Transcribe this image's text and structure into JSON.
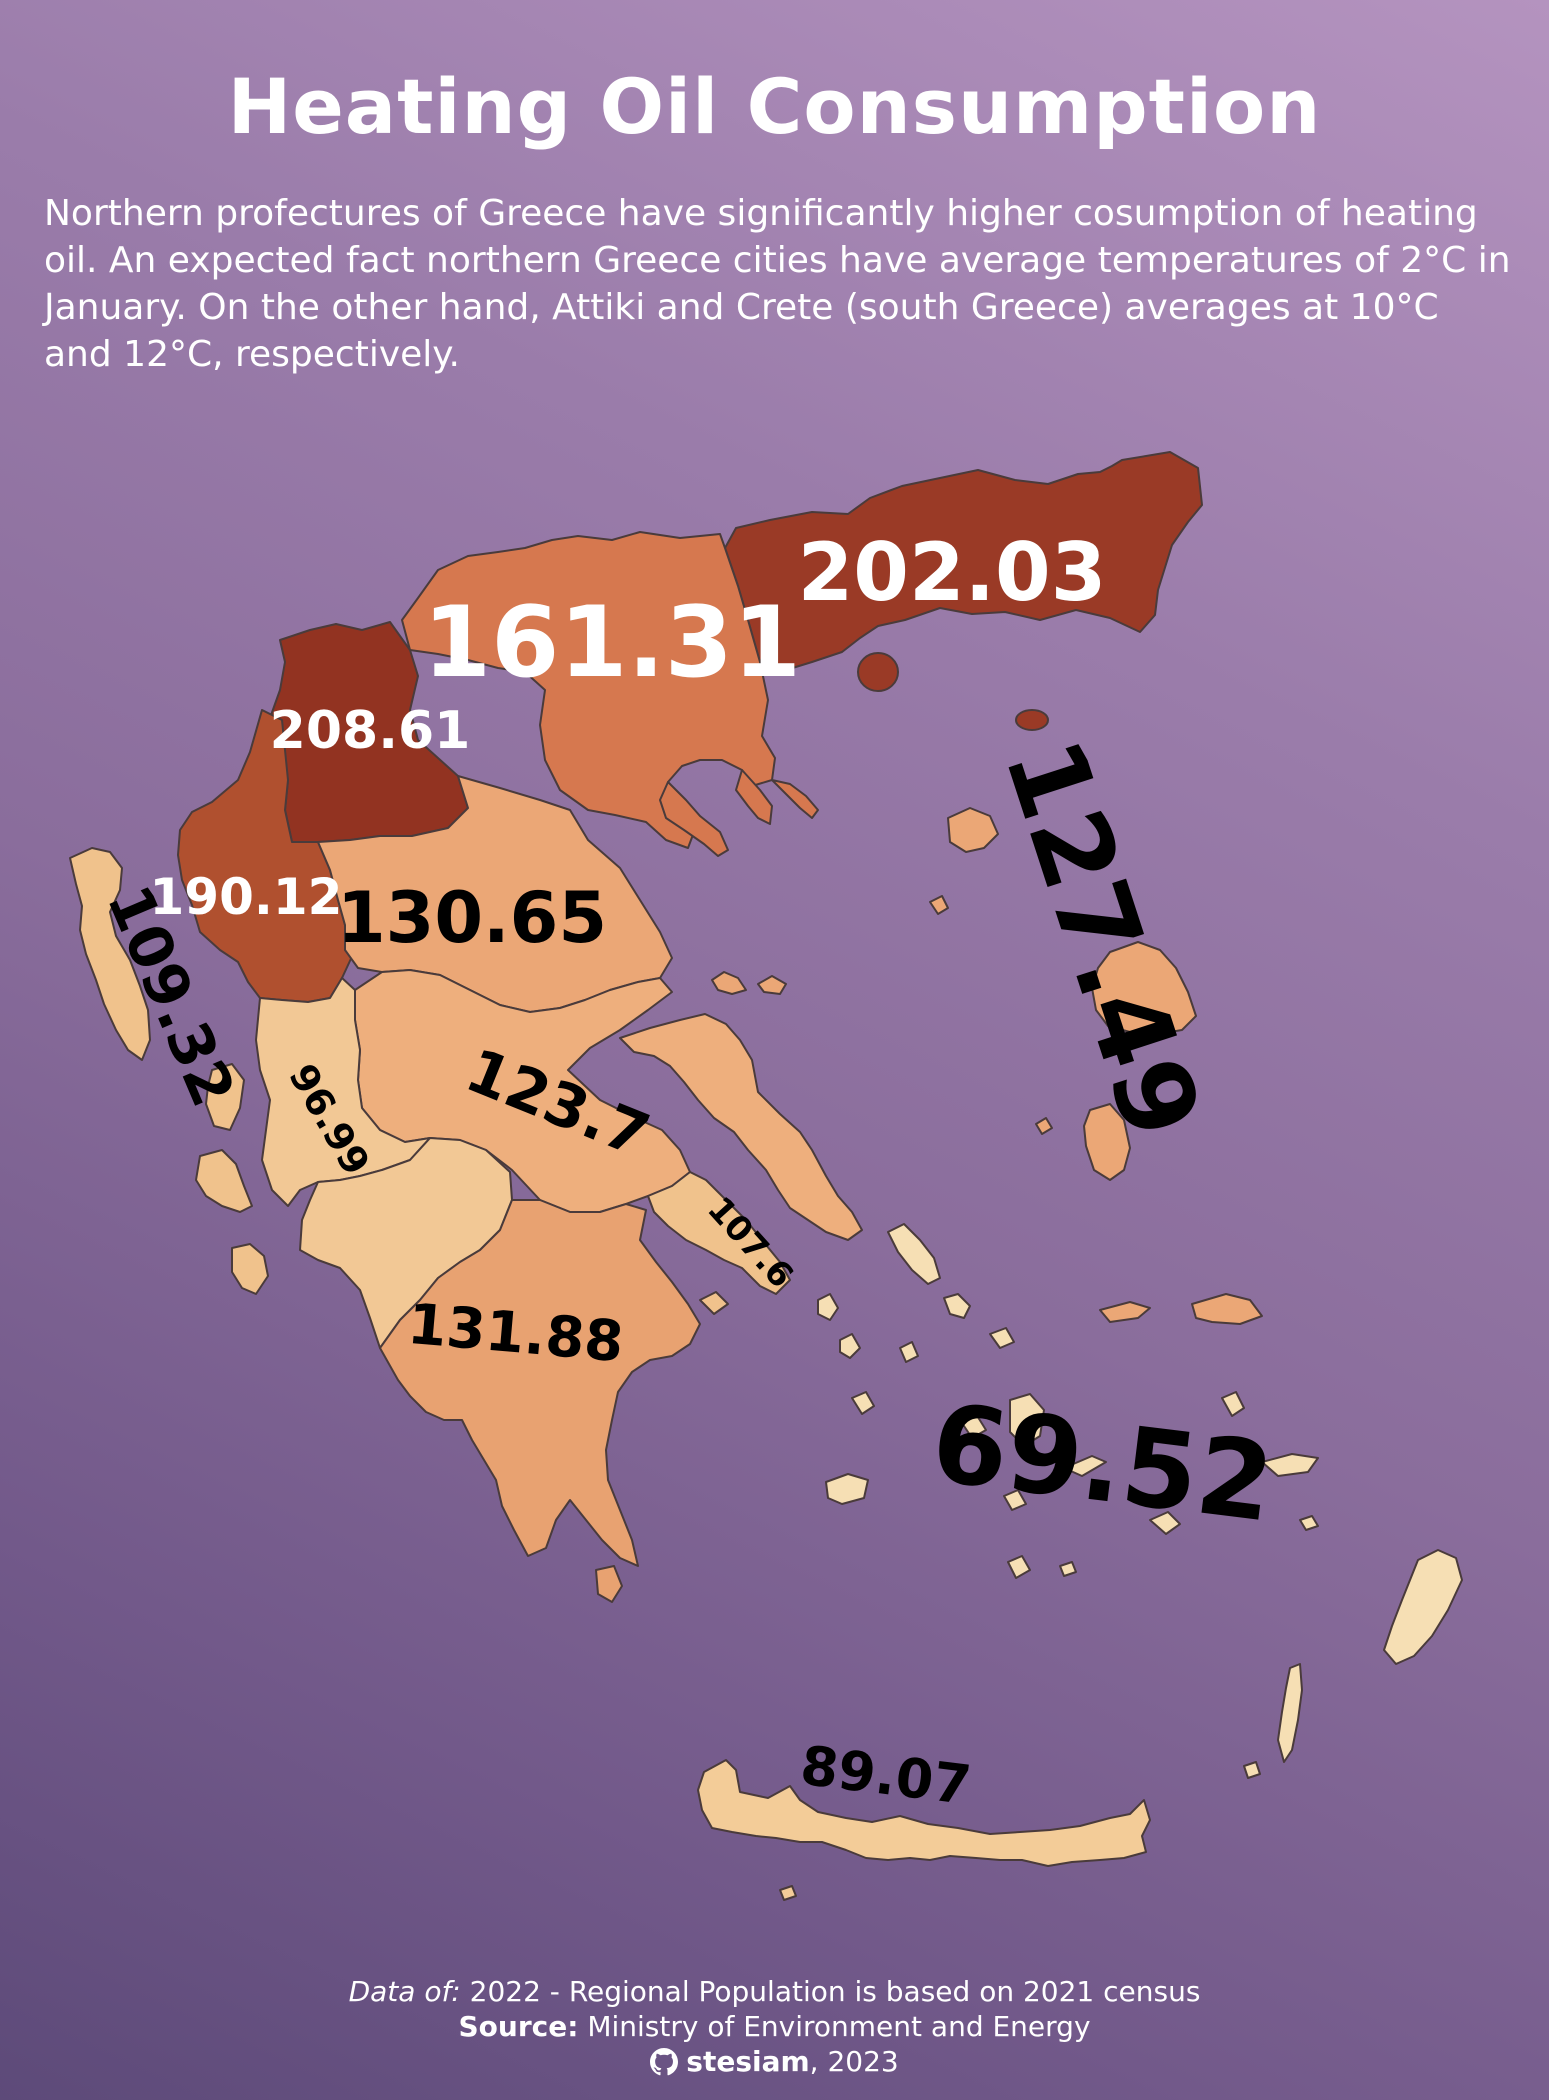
{
  "title": "Heating Oil Consumption",
  "subtitle": "Northern profectures of Greece have significantly higher cosumption of heating oil. An expected fact northern Greece cities have average temperatures of 2°C in January. On the other hand, Attiki and Crete (south Greece) averages at 10°C and 12°C, respectively.",
  "colors": {
    "lowest": "#f6dfb4",
    "low": "#f0c28c",
    "medium": "#e8a271",
    "high": "#d6784f",
    "higher": "#b0502f",
    "highest": "#923321"
  },
  "regions": [
    {
      "value": "208.61",
      "color": "#923321"
    },
    {
      "value": "202.03",
      "color": "#9a3a26"
    },
    {
      "value": "190.12",
      "color": "#b0502f"
    },
    {
      "value": "161.31",
      "color": "#d6784f"
    },
    {
      "value": "131.88",
      "color": "#e8a271"
    },
    {
      "value": "130.65",
      "color": "#eba776"
    },
    {
      "value": "127.49",
      "color": "#eba776"
    },
    {
      "value": "123.7",
      "color": "#eeaf7d"
    },
    {
      "value": "109.32",
      "color": "#f0c28c"
    },
    {
      "value": "107.6",
      "color": "#f0c28c"
    },
    {
      "value": "96.99",
      "color": "#f2c895"
    },
    {
      "value": "89.07",
      "color": "#f3cc98"
    },
    {
      "value": "69.52",
      "color": "#f6dfb4"
    }
  ],
  "footer": {
    "data_of_label": "Data of:",
    "data_of_text": " 2022 - Regional Population is based on 2021 census",
    "source_label": "Source:",
    "source_text": " Ministry of Environment and Energy",
    "author": "stesiam",
    "year": ", 2023",
    "author_icon": "github-icon"
  }
}
